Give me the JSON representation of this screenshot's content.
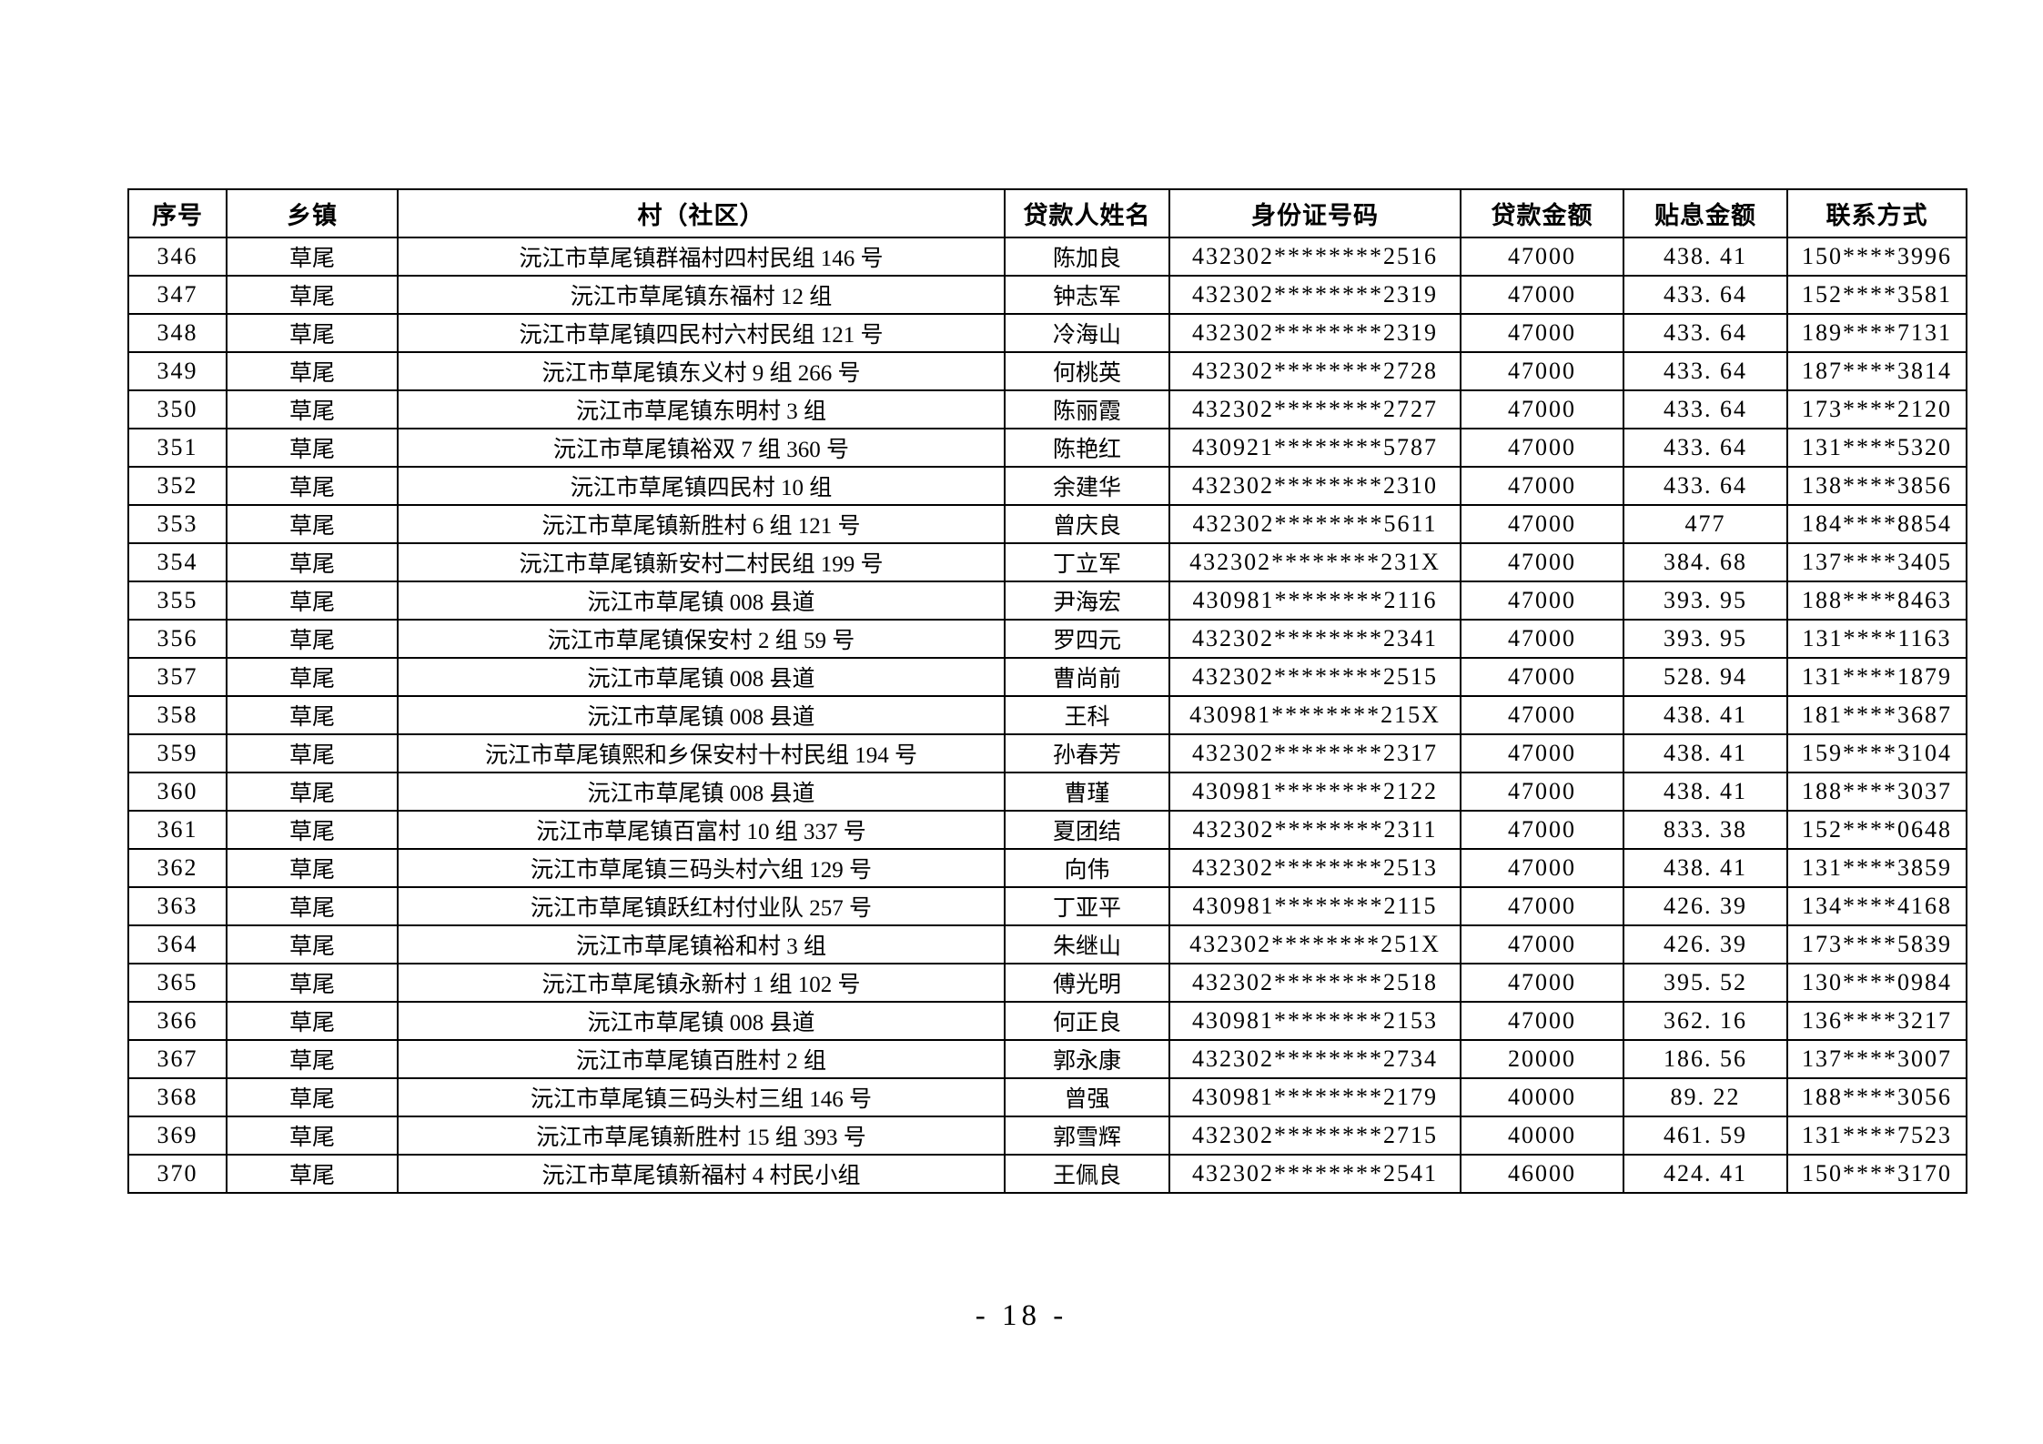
{
  "page": {
    "number_label": "- 18 -"
  },
  "table": {
    "headers": [
      "序号",
      "乡镇",
      "村（社区）",
      "贷款人姓名",
      "身份证号码",
      "贷款金额",
      "贴息金额",
      "联系方式"
    ],
    "rows": [
      [
        "346",
        "草尾",
        "沅江市草尾镇群福村四村民组 146 号",
        "陈加良",
        "432302********2516",
        "47000",
        "438. 41",
        "150****3996"
      ],
      [
        "347",
        "草尾",
        "沅江市草尾镇东福村 12 组",
        "钟志军",
        "432302********2319",
        "47000",
        "433. 64",
        "152****3581"
      ],
      [
        "348",
        "草尾",
        "沅江市草尾镇四民村六村民组 121 号",
        "冷海山",
        "432302********2319",
        "47000",
        "433. 64",
        "189****7131"
      ],
      [
        "349",
        "草尾",
        "沅江市草尾镇东义村 9 组 266 号",
        "何桃英",
        "432302********2728",
        "47000",
        "433. 64",
        "187****3814"
      ],
      [
        "350",
        "草尾",
        "沅江市草尾镇东明村 3 组",
        "陈丽霞",
        "432302********2727",
        "47000",
        "433. 64",
        "173****2120"
      ],
      [
        "351",
        "草尾",
        "沅江市草尾镇裕双 7 组 360 号",
        "陈艳红",
        "430921********5787",
        "47000",
        "433. 64",
        "131****5320"
      ],
      [
        "352",
        "草尾",
        "沅江市草尾镇四民村 10 组",
        "余建华",
        "432302********2310",
        "47000",
        "433. 64",
        "138****3856"
      ],
      [
        "353",
        "草尾",
        "沅江市草尾镇新胜村 6 组 121 号",
        "曾庆良",
        "432302********5611",
        "47000",
        "477",
        "184****8854"
      ],
      [
        "354",
        "草尾",
        "沅江市草尾镇新安村二村民组 199 号",
        "丁立军",
        "432302********231X",
        "47000",
        "384. 68",
        "137****3405"
      ],
      [
        "355",
        "草尾",
        "沅江市草尾镇 008 县道",
        "尹海宏",
        "430981********2116",
        "47000",
        "393. 95",
        "188****8463"
      ],
      [
        "356",
        "草尾",
        "沅江市草尾镇保安村 2 组 59 号",
        "罗四元",
        "432302********2341",
        "47000",
        "393. 95",
        "131****1163"
      ],
      [
        "357",
        "草尾",
        "沅江市草尾镇 008 县道",
        "曹尚前",
        "432302********2515",
        "47000",
        "528. 94",
        "131****1879"
      ],
      [
        "358",
        "草尾",
        "沅江市草尾镇 008 县道",
        "王科",
        "430981********215X",
        "47000",
        "438. 41",
        "181****3687"
      ],
      [
        "359",
        "草尾",
        "沅江市草尾镇熙和乡保安村十村民组 194 号",
        "孙春芳",
        "432302********2317",
        "47000",
        "438. 41",
        "159****3104"
      ],
      [
        "360",
        "草尾",
        "沅江市草尾镇 008 县道",
        "曹瑾",
        "430981********2122",
        "47000",
        "438. 41",
        "188****3037"
      ],
      [
        "361",
        "草尾",
        "沅江市草尾镇百富村 10 组 337 号",
        "夏团结",
        "432302********2311",
        "47000",
        "833. 38",
        "152****0648"
      ],
      [
        "362",
        "草尾",
        "沅江市草尾镇三码头村六组 129 号",
        "向伟",
        "432302********2513",
        "47000",
        "438. 41",
        "131****3859"
      ],
      [
        "363",
        "草尾",
        "沅江市草尾镇跃红村付业队 257 号",
        "丁亚平",
        "430981********2115",
        "47000",
        "426. 39",
        "134****4168"
      ],
      [
        "364",
        "草尾",
        "沅江市草尾镇裕和村 3 组",
        "朱继山",
        "432302********251X",
        "47000",
        "426. 39",
        "173****5839"
      ],
      [
        "365",
        "草尾",
        "沅江市草尾镇永新村 1 组 102 号",
        "傅光明",
        "432302********2518",
        "47000",
        "395. 52",
        "130****0984"
      ],
      [
        "366",
        "草尾",
        "沅江市草尾镇 008 县道",
        "何正良",
        "430981********2153",
        "47000",
        "362. 16",
        "136****3217"
      ],
      [
        "367",
        "草尾",
        "沅江市草尾镇百胜村 2 组",
        "郭永康",
        "432302********2734",
        "20000",
        "186. 56",
        "137****3007"
      ],
      [
        "368",
        "草尾",
        "沅江市草尾镇三码头村三组 146 号",
        "曾强",
        "430981********2179",
        "40000",
        "89. 22",
        "188****3056"
      ],
      [
        "369",
        "草尾",
        "沅江市草尾镇新胜村 15 组 393 号",
        "郭雪辉",
        "432302********2715",
        "40000",
        "461. 59",
        "131****7523"
      ],
      [
        "370",
        "草尾",
        "沅江市草尾镇新福村 4 村民小组",
        "王佩良",
        "432302********2541",
        "46000",
        "424. 41",
        "150****3170"
      ]
    ]
  }
}
